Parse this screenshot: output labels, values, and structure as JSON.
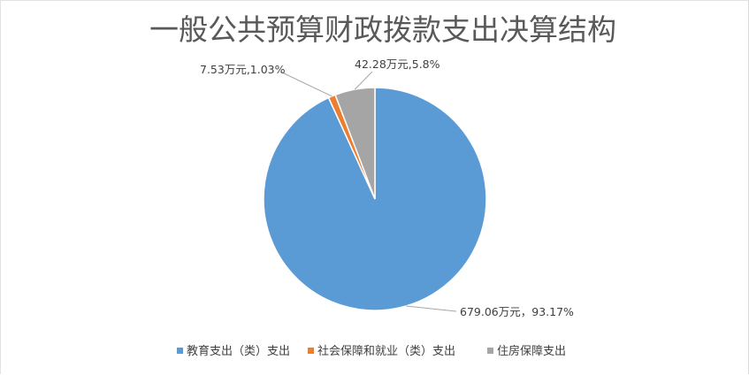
{
  "chart_data": {
    "type": "pie",
    "title": "一般公共预算财政拨款支出决算结构",
    "legend_position": "bottom",
    "slices": [
      {
        "name": "教育支出（类）支出",
        "value": 679.06,
        "percent": 93.17,
        "label": "679.06万元，93.17%",
        "color": "#5B9BD5"
      },
      {
        "name": "社会保障和就业（类）支出",
        "value": 7.53,
        "percent": 1.03,
        "label": "7.53万元,1.03%",
        "color": "#ED7D31"
      },
      {
        "name": "住房保障支出",
        "value": 42.28,
        "percent": 5.8,
        "label": "42.28万元,5.8%",
        "color": "#A5A5A5"
      }
    ]
  }
}
